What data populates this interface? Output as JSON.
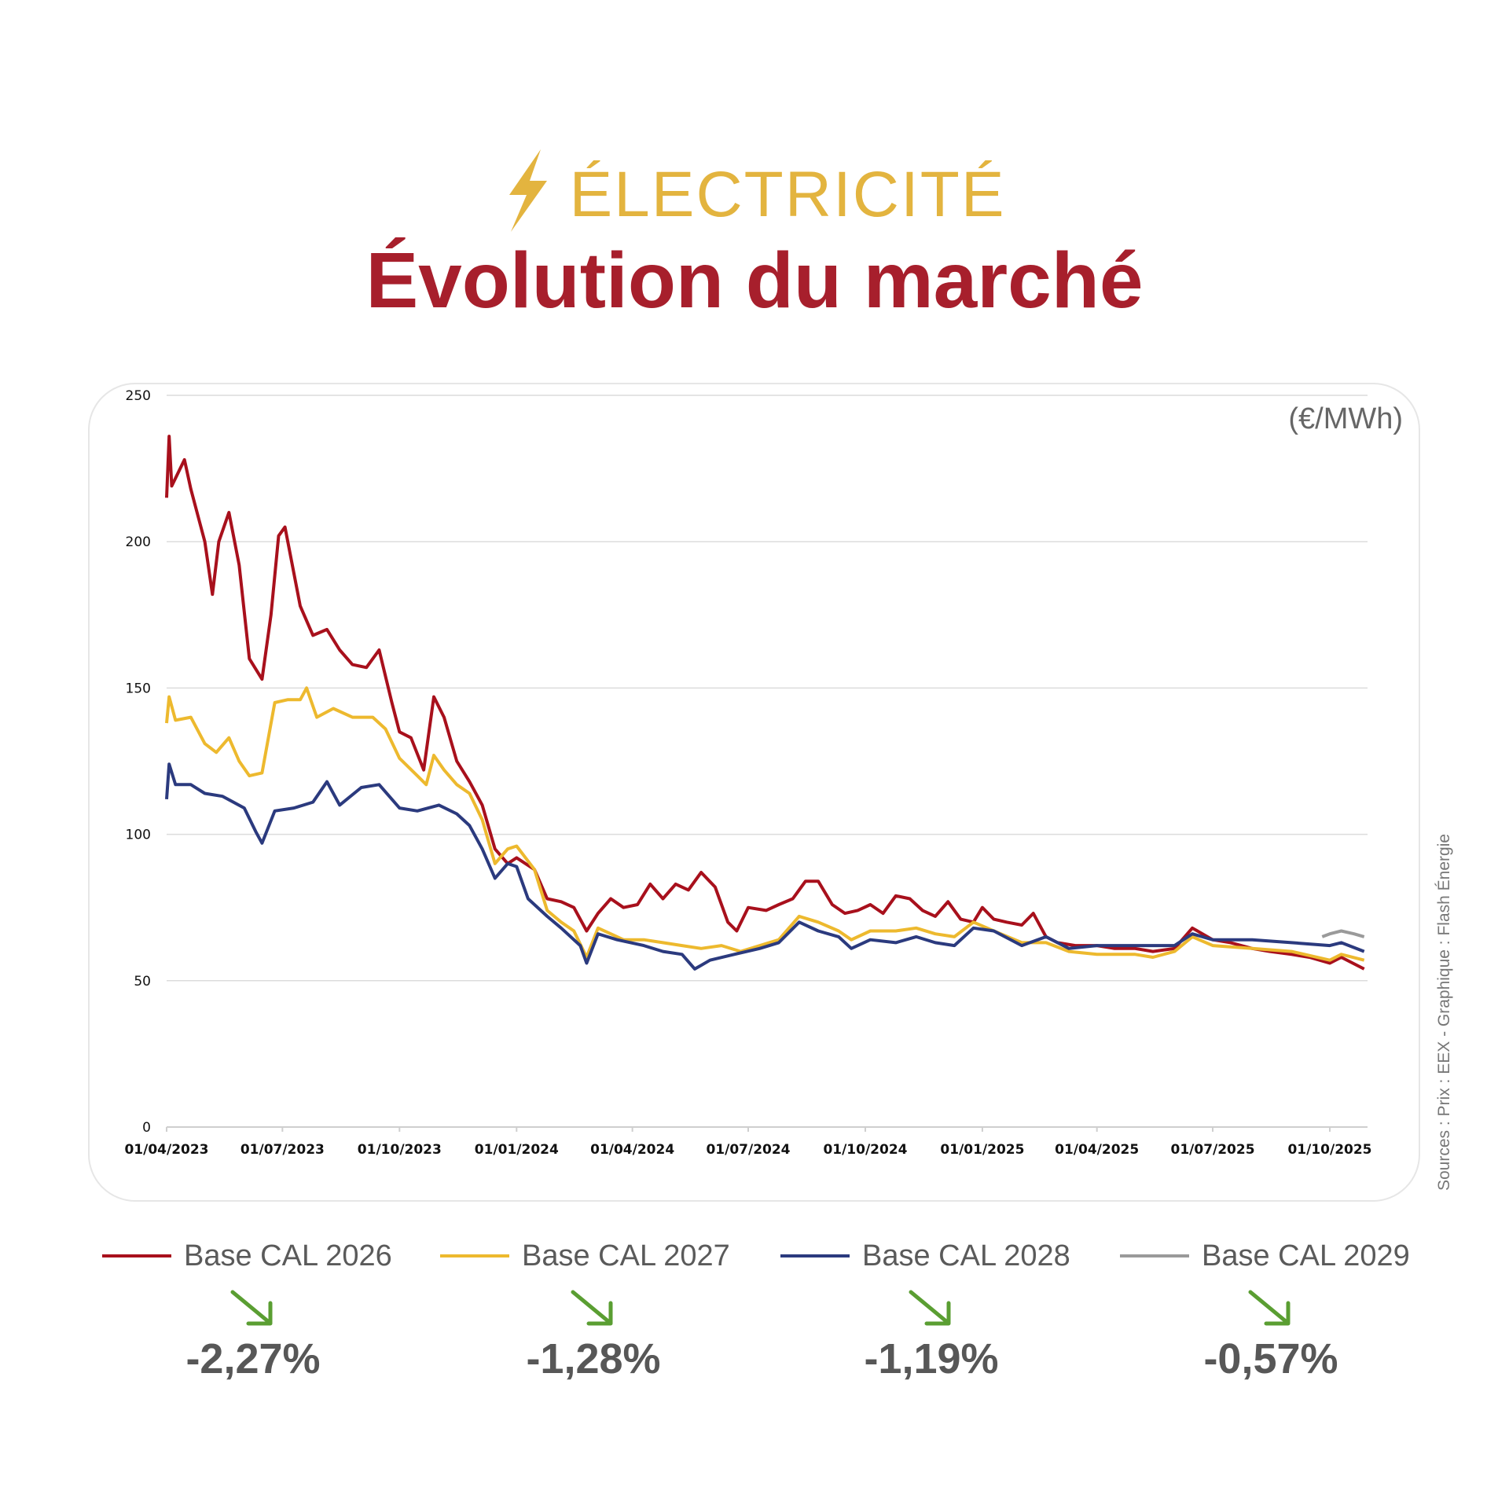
{
  "header": {
    "kicker": "ÉLECTRICITÉ",
    "kicker_icon": "lightning-bolt-icon",
    "title": "Évolution du marché",
    "kicker_color": "#e3b43f",
    "title_color": "#a71f2c"
  },
  "unit": "(€/MWh)",
  "sources": "Sources : Prix : EEX - Graphique : Flash Énergie",
  "chart_data": {
    "type": "line",
    "title": "",
    "xlabel": "",
    "ylabel": "(€/MWh)",
    "ylim": [
      0,
      250
    ],
    "yticks": [
      "0",
      "50",
      "100",
      "150",
      "200",
      "250"
    ],
    "xticks": [
      "01/04/2023",
      "01/07/2023",
      "01/10/2023",
      "01/01/2024",
      "01/04/2024",
      "01/07/2024",
      "01/10/2024",
      "01/01/2025",
      "01/04/2025",
      "01/07/2025",
      "01/10/2025"
    ],
    "grid": "horizontal",
    "legend": "bottom",
    "series": [
      {
        "name": "Base CAL 2026",
        "color": "#a8101c",
        "points": [
          [
            "2023-04-01",
            215
          ],
          [
            "2023-04-03",
            236
          ],
          [
            "2023-04-05",
            219
          ],
          [
            "2023-04-15",
            228
          ],
          [
            "2023-04-20",
            218
          ],
          [
            "2023-05-01",
            200
          ],
          [
            "2023-05-07",
            182
          ],
          [
            "2023-05-12",
            200
          ],
          [
            "2023-05-20",
            210
          ],
          [
            "2023-05-28",
            192
          ],
          [
            "2023-06-05",
            160
          ],
          [
            "2023-06-15",
            153
          ],
          [
            "2023-06-22",
            175
          ],
          [
            "2023-06-28",
            202
          ],
          [
            "2023-07-03",
            205
          ],
          [
            "2023-07-15",
            178
          ],
          [
            "2023-07-25",
            168
          ],
          [
            "2023-08-05",
            170
          ],
          [
            "2023-08-15",
            163
          ],
          [
            "2023-08-25",
            158
          ],
          [
            "2023-09-05",
            157
          ],
          [
            "2023-09-15",
            163
          ],
          [
            "2023-09-25",
            145
          ],
          [
            "2023-10-01",
            135
          ],
          [
            "2023-10-10",
            133
          ],
          [
            "2023-10-20",
            122
          ],
          [
            "2023-10-28",
            147
          ],
          [
            "2023-11-05",
            140
          ],
          [
            "2023-11-15",
            125
          ],
          [
            "2023-11-25",
            118
          ],
          [
            "2023-12-05",
            110
          ],
          [
            "2023-12-15",
            95
          ],
          [
            "2023-12-25",
            90
          ],
          [
            "2024-01-01",
            92
          ],
          [
            "2024-01-15",
            88
          ],
          [
            "2024-01-25",
            78
          ],
          [
            "2024-02-05",
            77
          ],
          [
            "2024-02-15",
            75
          ],
          [
            "2024-02-25",
            67
          ],
          [
            "2024-03-05",
            73
          ],
          [
            "2024-03-15",
            78
          ],
          [
            "2024-03-25",
            75
          ],
          [
            "2024-04-05",
            76
          ],
          [
            "2024-04-15",
            83
          ],
          [
            "2024-04-25",
            78
          ],
          [
            "2024-05-05",
            83
          ],
          [
            "2024-05-15",
            81
          ],
          [
            "2024-05-25",
            87
          ],
          [
            "2024-06-05",
            82
          ],
          [
            "2024-06-15",
            70
          ],
          [
            "2024-06-22",
            67
          ],
          [
            "2024-07-01",
            75
          ],
          [
            "2024-07-15",
            74
          ],
          [
            "2024-07-25",
            76
          ],
          [
            "2024-08-05",
            78
          ],
          [
            "2024-08-15",
            84
          ],
          [
            "2024-08-25",
            84
          ],
          [
            "2024-09-05",
            76
          ],
          [
            "2024-09-15",
            73
          ],
          [
            "2024-09-25",
            74
          ],
          [
            "2024-10-05",
            76
          ],
          [
            "2024-10-15",
            73
          ],
          [
            "2024-10-25",
            79
          ],
          [
            "2024-11-05",
            78
          ],
          [
            "2024-11-15",
            74
          ],
          [
            "2024-11-25",
            72
          ],
          [
            "2024-12-05",
            77
          ],
          [
            "2024-12-15",
            71
          ],
          [
            "2024-12-25",
            70
          ],
          [
            "2025-01-01",
            75
          ],
          [
            "2025-01-10",
            71
          ],
          [
            "2025-01-20",
            70
          ],
          [
            "2025-02-01",
            69
          ],
          [
            "2025-02-10",
            73
          ],
          [
            "2025-02-20",
            65
          ],
          [
            "2025-03-01",
            63
          ],
          [
            "2025-03-15",
            62
          ],
          [
            "2025-04-01",
            62
          ],
          [
            "2025-04-15",
            61
          ],
          [
            "2025-05-01",
            61
          ],
          [
            "2025-05-15",
            60
          ],
          [
            "2025-06-01",
            61
          ],
          [
            "2025-06-15",
            68
          ],
          [
            "2025-07-01",
            64
          ],
          [
            "2025-07-15",
            63
          ],
          [
            "2025-08-01",
            61
          ],
          [
            "2025-08-15",
            60
          ],
          [
            "2025-09-01",
            59
          ],
          [
            "2025-09-15",
            58
          ],
          [
            "2025-10-01",
            56
          ],
          [
            "2025-10-10",
            58
          ],
          [
            "2025-10-28",
            54
          ]
        ]
      },
      {
        "name": "Base CAL 2027",
        "color": "#edb92e",
        "points": [
          [
            "2023-04-01",
            138
          ],
          [
            "2023-04-03",
            147
          ],
          [
            "2023-04-08",
            139
          ],
          [
            "2023-04-20",
            140
          ],
          [
            "2023-05-01",
            131
          ],
          [
            "2023-05-10",
            128
          ],
          [
            "2023-05-20",
            133
          ],
          [
            "2023-05-28",
            125
          ],
          [
            "2023-06-05",
            120
          ],
          [
            "2023-06-15",
            121
          ],
          [
            "2023-06-25",
            145
          ],
          [
            "2023-07-05",
            146
          ],
          [
            "2023-07-15",
            146
          ],
          [
            "2023-07-20",
            150
          ],
          [
            "2023-07-28",
            140
          ],
          [
            "2023-08-10",
            143
          ],
          [
            "2023-08-25",
            140
          ],
          [
            "2023-09-10",
            140
          ],
          [
            "2023-09-20",
            136
          ],
          [
            "2023-10-01",
            126
          ],
          [
            "2023-10-15",
            120
          ],
          [
            "2023-10-22",
            117
          ],
          [
            "2023-10-28",
            127
          ],
          [
            "2023-11-05",
            122
          ],
          [
            "2023-11-15",
            117
          ],
          [
            "2023-11-25",
            114
          ],
          [
            "2023-12-05",
            105
          ],
          [
            "2023-12-15",
            90
          ],
          [
            "2023-12-25",
            95
          ],
          [
            "2024-01-01",
            96
          ],
          [
            "2024-01-15",
            88
          ],
          [
            "2024-01-25",
            74
          ],
          [
            "2024-02-05",
            70
          ],
          [
            "2024-02-15",
            67
          ],
          [
            "2024-02-25",
            58
          ],
          [
            "2024-03-05",
            68
          ],
          [
            "2024-03-15",
            66
          ],
          [
            "2024-03-25",
            64
          ],
          [
            "2024-04-10",
            64
          ],
          [
            "2024-04-25",
            63
          ],
          [
            "2024-05-10",
            62
          ],
          [
            "2024-05-25",
            61
          ],
          [
            "2024-06-10",
            62
          ],
          [
            "2024-06-25",
            60
          ],
          [
            "2024-07-10",
            62
          ],
          [
            "2024-07-25",
            64
          ],
          [
            "2024-08-10",
            72
          ],
          [
            "2024-08-25",
            70
          ],
          [
            "2024-09-10",
            67
          ],
          [
            "2024-09-20",
            64
          ],
          [
            "2024-10-05",
            67
          ],
          [
            "2024-10-25",
            67
          ],
          [
            "2024-11-10",
            68
          ],
          [
            "2024-11-25",
            66
          ],
          [
            "2024-12-10",
            65
          ],
          [
            "2024-12-25",
            70
          ],
          [
            "2025-01-10",
            67
          ],
          [
            "2025-02-01",
            63
          ],
          [
            "2025-02-20",
            63
          ],
          [
            "2025-03-10",
            60
          ],
          [
            "2025-04-01",
            59
          ],
          [
            "2025-05-01",
            59
          ],
          [
            "2025-05-15",
            58
          ],
          [
            "2025-06-01",
            60
          ],
          [
            "2025-06-15",
            65
          ],
          [
            "2025-07-01",
            62
          ],
          [
            "2025-08-01",
            61
          ],
          [
            "2025-09-01",
            60
          ],
          [
            "2025-10-01",
            57
          ],
          [
            "2025-10-10",
            59
          ],
          [
            "2025-10-28",
            57
          ]
        ]
      },
      {
        "name": "Base CAL 2028",
        "color": "#2b3a7e",
        "points": [
          [
            "2023-04-01",
            112
          ],
          [
            "2023-04-03",
            124
          ],
          [
            "2023-04-08",
            117
          ],
          [
            "2023-04-20",
            117
          ],
          [
            "2023-05-01",
            114
          ],
          [
            "2023-05-15",
            113
          ],
          [
            "2023-06-01",
            109
          ],
          [
            "2023-06-10",
            101
          ],
          [
            "2023-06-15",
            97
          ],
          [
            "2023-06-25",
            108
          ],
          [
            "2023-07-10",
            109
          ],
          [
            "2023-07-25",
            111
          ],
          [
            "2023-08-05",
            118
          ],
          [
            "2023-08-15",
            110
          ],
          [
            "2023-09-01",
            116
          ],
          [
            "2023-09-15",
            117
          ],
          [
            "2023-10-01",
            109
          ],
          [
            "2023-10-15",
            108
          ],
          [
            "2023-11-01",
            110
          ],
          [
            "2023-11-15",
            107
          ],
          [
            "2023-11-25",
            103
          ],
          [
            "2023-12-05",
            95
          ],
          [
            "2023-12-15",
            85
          ],
          [
            "2023-12-25",
            90
          ],
          [
            "2024-01-01",
            89
          ],
          [
            "2024-01-10",
            78
          ],
          [
            "2024-01-25",
            72
          ],
          [
            "2024-02-05",
            68
          ],
          [
            "2024-02-20",
            62
          ],
          [
            "2024-02-25",
            56
          ],
          [
            "2024-03-05",
            66
          ],
          [
            "2024-03-20",
            64
          ],
          [
            "2024-04-10",
            62
          ],
          [
            "2024-04-25",
            60
          ],
          [
            "2024-05-10",
            59
          ],
          [
            "2024-05-20",
            54
          ],
          [
            "2024-06-01",
            57
          ],
          [
            "2024-06-20",
            59
          ],
          [
            "2024-07-10",
            61
          ],
          [
            "2024-07-25",
            63
          ],
          [
            "2024-08-10",
            70
          ],
          [
            "2024-08-25",
            67
          ],
          [
            "2024-09-10",
            65
          ],
          [
            "2024-09-20",
            61
          ],
          [
            "2024-10-05",
            64
          ],
          [
            "2024-10-25",
            63
          ],
          [
            "2024-11-10",
            65
          ],
          [
            "2024-11-25",
            63
          ],
          [
            "2024-12-10",
            62
          ],
          [
            "2024-12-25",
            68
          ],
          [
            "2025-01-10",
            67
          ],
          [
            "2025-02-01",
            62
          ],
          [
            "2025-02-20",
            65
          ],
          [
            "2025-03-10",
            61
          ],
          [
            "2025-04-01",
            62
          ],
          [
            "2025-05-01",
            62
          ],
          [
            "2025-06-01",
            62
          ],
          [
            "2025-06-15",
            66
          ],
          [
            "2025-07-01",
            64
          ],
          [
            "2025-08-01",
            64
          ],
          [
            "2025-09-01",
            63
          ],
          [
            "2025-10-01",
            62
          ],
          [
            "2025-10-10",
            63
          ],
          [
            "2025-10-28",
            60
          ]
        ]
      },
      {
        "name": "Base CAL 2029",
        "color": "#9a9a9a",
        "points": [
          [
            "2025-09-25",
            65
          ],
          [
            "2025-10-01",
            66
          ],
          [
            "2025-10-10",
            67
          ],
          [
            "2025-10-20",
            66
          ],
          [
            "2025-10-28",
            65
          ]
        ]
      }
    ]
  },
  "changes": [
    {
      "series": "Base CAL 2026",
      "value": "-2,27%",
      "icon": "arrow-down-right-icon",
      "color": "#5a9e32"
    },
    {
      "series": "Base CAL 2027",
      "value": "-1,28%",
      "icon": "arrow-down-right-icon",
      "color": "#5a9e32"
    },
    {
      "series": "Base CAL 2028",
      "value": "-1,19%",
      "icon": "arrow-down-right-icon",
      "color": "#5a9e32"
    },
    {
      "series": "Base CAL 2029",
      "value": "-0,57%",
      "icon": "arrow-down-right-icon",
      "color": "#5a9e32"
    }
  ]
}
